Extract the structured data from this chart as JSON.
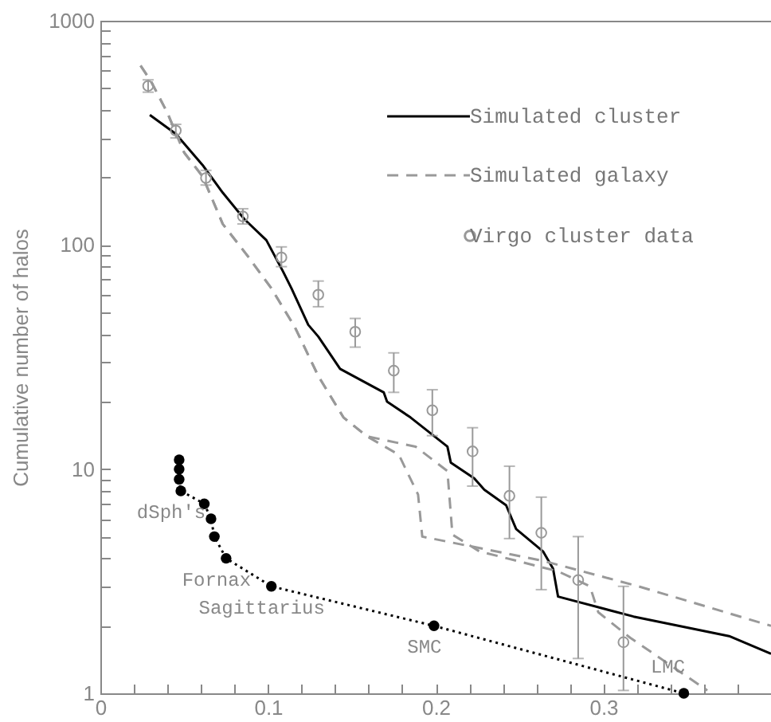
{
  "chart_data": {
    "type": "line",
    "ylabel": "Cumulative number of halos",
    "log": true,
    "legend": "top right",
    "xlim": [
      0,
      0.4
    ],
    "xticks": [
      0,
      {
        "value": 0.02,
        "label": null
      },
      {
        "value": 0.04,
        "label": null
      },
      {
        "value": 0.06,
        "label": null
      },
      {
        "value": 0.08,
        "label": null
      },
      0.1,
      {
        "value": 0.12,
        "label": null
      },
      {
        "value": 0.14,
        "label": null
      },
      {
        "value": 0.16,
        "label": null
      },
      {
        "value": 0.18,
        "label": null
      },
      0.2,
      {
        "value": 0.22,
        "label": null
      },
      {
        "value": 0.24,
        "label": null
      },
      {
        "value": 0.26,
        "label": null
      },
      {
        "value": 0.28,
        "label": null
      },
      0.3,
      {
        "value": 0.32,
        "label": null
      },
      {
        "value": 0.34,
        "label": null
      },
      {
        "value": 0.36,
        "label": null
      },
      {
        "value": 0.38,
        "label": null
      }
    ],
    "ylim": [
      1,
      1000
    ],
    "yticks": [
      1,
      {
        "value": 2,
        "label": null
      },
      {
        "value": 3,
        "label": null
      },
      {
        "value": 4,
        "label": null
      },
      {
        "value": 5,
        "label": null
      },
      {
        "value": 6,
        "label": null
      },
      {
        "value": 7,
        "label": null
      },
      {
        "value": 8,
        "label": null
      },
      {
        "value": 9,
        "label": null
      },
      10,
      {
        "value": 20,
        "label": null
      },
      {
        "value": 30,
        "label": null
      },
      {
        "value": 40,
        "label": null
      },
      {
        "value": 50,
        "label": null
      },
      {
        "value": 60,
        "label": null
      },
      {
        "value": 70,
        "label": null
      },
      {
        "value": 80,
        "label": null
      },
      {
        "value": 90,
        "label": null
      },
      100,
      {
        "value": 200,
        "label": null
      },
      {
        "value": 300,
        "label": null
      },
      {
        "value": 400,
        "label": null
      },
      {
        "value": 500,
        "label": null
      },
      {
        "value": 600,
        "label": null
      },
      {
        "value": 700,
        "label": null
      },
      {
        "value": 800,
        "label": null
      },
      {
        "value": 900,
        "label": null
      },
      1000
    ],
    "series": [
      {
        "name": "Simulated cluster",
        "type": "line",
        "line_style": "solid",
        "color": "#000000",
        "x": [
          0.0295,
          0.045,
          0.061,
          0.073,
          0.086,
          0.099,
          0.109,
          0.114,
          0.124,
          0.13,
          0.143,
          0.169,
          0.171,
          0.185,
          0.207,
          0.209,
          0.223,
          0.229,
          0.242,
          0.248,
          0.264,
          0.27,
          0.273,
          0.318,
          0.375,
          0.4
        ],
        "values": [
          380,
          313,
          227,
          171,
          130,
          105,
          76,
          64,
          44,
          39,
          28,
          22,
          20,
          17,
          12.6,
          10.7,
          9.1,
          8.1,
          6.9,
          5.4,
          4.3,
          3.6,
          2.7,
          2.2,
          1.8,
          1.5
        ]
      },
      {
        "name": "Simulated galaxy",
        "type": "line",
        "line_style": "dashed",
        "color": "#999999",
        "x": [
          0.024,
          0.03,
          0.04,
          0.05,
          0.061,
          0.073,
          0.088,
          0.102,
          0.116,
          0.13,
          0.145,
          0.159,
          0.178,
          0.1895,
          0.192,
          0.264,
          0.321,
          0.4
        ],
        "values": [
          630,
          540,
          388,
          258,
          202,
          124,
          89,
          64,
          43,
          26,
          17,
          14,
          11.6,
          7.7,
          5.0,
          3.9,
          3.0,
          2.0
        ]
      },
      {
        "type": "line",
        "line_style": "dashed",
        "color": "#999999",
        "x": [
          0.024,
          0.03,
          0.04,
          0.05,
          0.061,
          0.073,
          0.088,
          0.102,
          0.116,
          0.13,
          0.145,
          0.159,
          0.188,
          0.207,
          0.21,
          0.226,
          0.273,
          0.292,
          0.297,
          0.316,
          0.362
        ],
        "values": [
          630,
          540,
          388,
          258,
          202,
          124,
          89,
          64,
          43,
          26,
          17,
          14,
          12.6,
          9.8,
          5.1,
          4.3,
          3.5,
          3.0,
          2.3,
          1.77,
          1.03
        ]
      },
      {
        "name": "Virgo cluster data",
        "type": "scatter",
        "marker": "circle",
        "color": "#999999",
        "x": [
          0.0285,
          0.045,
          0.063,
          0.085,
          0.108,
          0.13,
          0.152,
          0.175,
          0.198,
          0.222,
          0.244,
          0.263,
          0.285,
          0.312
        ],
        "values": [
          512,
          324,
          199,
          134,
          88,
          60,
          41,
          27.5,
          18.3,
          12,
          7.6,
          5.2,
          3.2,
          1.69
        ],
        "errors": [
          [
            480,
            545
          ],
          [
            300,
            345
          ],
          [
            185,
            215
          ],
          [
            124,
            145
          ],
          [
            80,
            98
          ],
          [
            53,
            69
          ],
          [
            35,
            47
          ],
          [
            22,
            33
          ],
          [
            14.1,
            22.6
          ],
          [
            8.4,
            15.3
          ],
          [
            4.9,
            10.3
          ],
          [
            2.9,
            7.5
          ],
          [
            1.43,
            5.0
          ],
          [
            1.03,
            3.0
          ]
        ]
      },
      {
        "type": "line",
        "line_style": "dotted",
        "marker": "circle",
        "color": "#000000",
        "x": [
          0.047,
          0.047,
          0.047,
          0.048,
          0.062,
          0.066,
          0.068,
          0.075,
          0.102,
          0.199,
          0.348
        ],
        "values": [
          11,
          10,
          9,
          8,
          7,
          6,
          5,
          4,
          3,
          2,
          1
        ]
      }
    ],
    "annotations": [
      {
        "text": "dSph's",
        "x": 0.048,
        "y": 8
      },
      {
        "text": "Fornax",
        "x": 0.075,
        "y": 4
      },
      {
        "text": "Sagittarius",
        "x": 0.102,
        "y": 3
      },
      {
        "text": "SMC",
        "x": 0.199,
        "y": 2
      },
      {
        "text": "LMC",
        "x": 0.348,
        "y": 1
      }
    ]
  }
}
